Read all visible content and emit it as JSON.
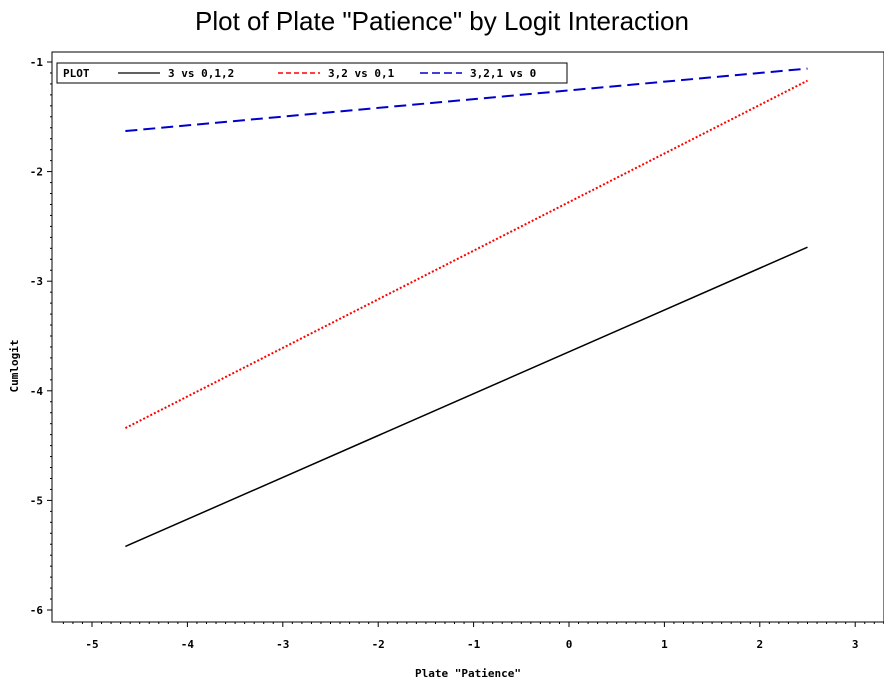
{
  "chart_data": {
    "type": "line",
    "title": "Plot of Plate \"Patience\" by Logit Interaction",
    "xlabel": "Plate \"Patience\"",
    "ylabel": "Cumlogit",
    "xlim": [
      -5.4,
      3.4
    ],
    "ylim": [
      -6.1,
      -0.9
    ],
    "x_ticks": [
      -5,
      -4,
      -3,
      -2,
      -1,
      0,
      1,
      2,
      3
    ],
    "y_ticks": [
      -6,
      -5,
      -4,
      -3,
      -2,
      -1
    ],
    "x_tick_labels": [
      "-5",
      "-4",
      "-3",
      "-2",
      "-1",
      "0",
      "1",
      "2",
      "3"
    ],
    "y_tick_labels": [
      "-6",
      "-5",
      "-4",
      "-3",
      "-2",
      "-1"
    ],
    "grid": false,
    "legend": {
      "title": "PLOT",
      "placement": "top-left"
    },
    "series": [
      {
        "name": "3 vs 0,1,2",
        "x": [
          -4.65,
          2.5
        ],
        "y": [
          -5.42,
          -2.69
        ],
        "color": "#000000",
        "style": "solid"
      },
      {
        "name": "3,2 vs 0,1",
        "x": [
          -4.65,
          2.5
        ],
        "y": [
          -4.34,
          -1.17
        ],
        "color": "#ff0000",
        "style": "dotted"
      },
      {
        "name": "3,2,1 vs 0",
        "x": [
          -4.65,
          2.5
        ],
        "y": [
          -1.63,
          -1.06
        ],
        "color": "#0000cc",
        "style": "dashed"
      }
    ]
  }
}
